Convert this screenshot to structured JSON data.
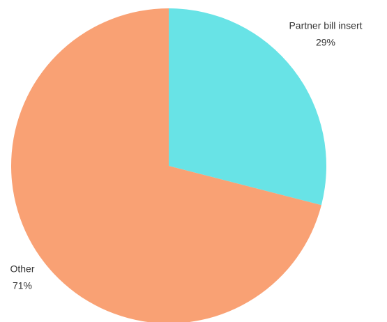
{
  "chart_data": {
    "type": "pie",
    "categories": [
      "Partner bill insert",
      "Other"
    ],
    "values": [
      29,
      71
    ],
    "value_labels": [
      "29%",
      "71%"
    ],
    "colors": [
      "#68e3e6",
      "#f9a174"
    ]
  }
}
